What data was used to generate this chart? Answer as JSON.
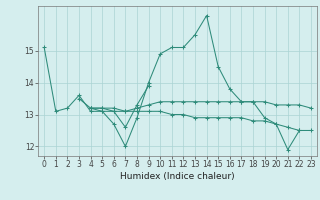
{
  "title": "",
  "xlabel": "Humidex (Indice chaleur)",
  "x": [
    0,
    1,
    2,
    3,
    4,
    5,
    6,
    7,
    8,
    9,
    10,
    11,
    12,
    13,
    14,
    15,
    16,
    17,
    18,
    19,
    20,
    21,
    22,
    23
  ],
  "lines": [
    [
      15.1,
      13.1,
      13.2,
      13.6,
      13.1,
      13.1,
      12.7,
      12.0,
      12.9,
      14.0,
      14.9,
      15.1,
      15.1,
      15.5,
      16.1,
      14.5,
      13.8,
      13.4,
      13.4,
      12.9,
      12.7,
      11.9,
      12.5,
      null
    ],
    [
      null,
      null,
      null,
      13.5,
      13.2,
      13.1,
      13.1,
      12.6,
      13.3,
      13.9,
      null,
      null,
      null,
      null,
      null,
      null,
      null,
      null,
      null,
      null,
      null,
      null,
      null,
      null
    ],
    [
      null,
      null,
      null,
      null,
      13.2,
      13.2,
      13.1,
      13.1,
      13.1,
      13.1,
      13.1,
      13.0,
      13.0,
      12.9,
      12.9,
      12.9,
      12.9,
      12.9,
      12.8,
      12.8,
      12.7,
      12.6,
      12.5,
      12.5
    ],
    [
      null,
      null,
      null,
      null,
      13.2,
      13.2,
      13.2,
      13.1,
      13.2,
      13.3,
      13.4,
      13.4,
      13.4,
      13.4,
      13.4,
      13.4,
      13.4,
      13.4,
      13.4,
      13.4,
      13.3,
      13.3,
      13.3,
      13.2
    ]
  ],
  "line_color": "#2e8b7a",
  "bg_color": "#d5eeee",
  "grid_color": "#aad4d4",
  "ylim": [
    11.7,
    16.4
  ],
  "yticks": [
    12,
    13,
    14,
    15
  ],
  "xlim": [
    -0.5,
    23.5
  ],
  "tick_fontsize": 5.5,
  "xlabel_fontsize": 6.5
}
